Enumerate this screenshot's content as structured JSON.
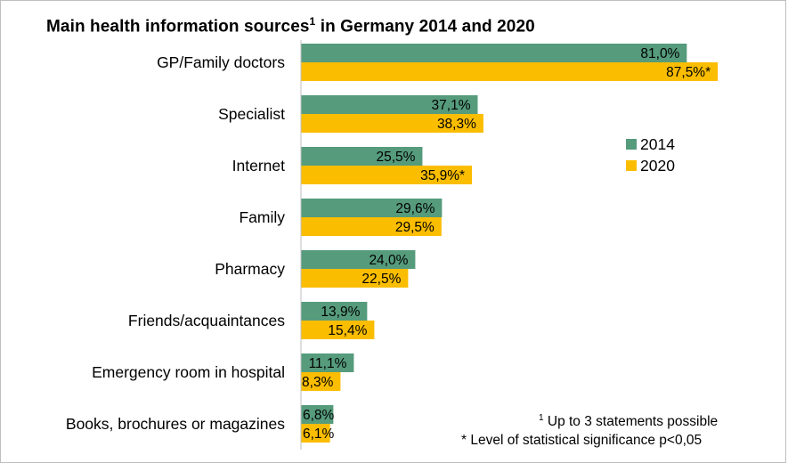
{
  "title": {
    "text": "Main health information sources",
    "superscript": "1",
    "suffix": " in Germany 2014 and 2020"
  },
  "colors": {
    "2014": "#559b7c",
    "2020": "#fbbd00"
  },
  "chart_data": {
    "type": "bar",
    "orientation": "horizontal",
    "title": "Main health information sources¹ in Germany 2014 and 2020",
    "categories": [
      "GP/Family doctors",
      "Specialist",
      "Internet",
      "Family",
      "Pharmacy",
      "Friends/acquaintances",
      "Emergency room in hospital",
      "Books, brochures or magazines"
    ],
    "series": [
      {
        "name": "2014",
        "values": [
          81.0,
          37.1,
          25.5,
          29.6,
          24.0,
          13.9,
          11.1,
          6.8
        ],
        "labels": [
          "81,0%",
          "37,1%",
          "25,5%",
          "29,6%",
          "24,0%",
          "13,9%",
          "11,1%",
          "6,8%"
        ]
      },
      {
        "name": "2020",
        "values": [
          87.5,
          38.3,
          35.9,
          29.5,
          22.5,
          15.4,
          8.3,
          6.1
        ],
        "labels": [
          "87,5%*",
          "38,3%",
          "35,9%*",
          "29,5%",
          "22,5%",
          "15,4%",
          "8,3%",
          "6,1%"
        ]
      }
    ],
    "xlim": [
      0,
      100
    ],
    "unit": "%",
    "grid": false,
    "legend": "right"
  },
  "notes": {
    "note1_sup": "1",
    "note1_text": " Up to 3 statements possible",
    "note2": "* Level of statistical significance p<0,05"
  }
}
